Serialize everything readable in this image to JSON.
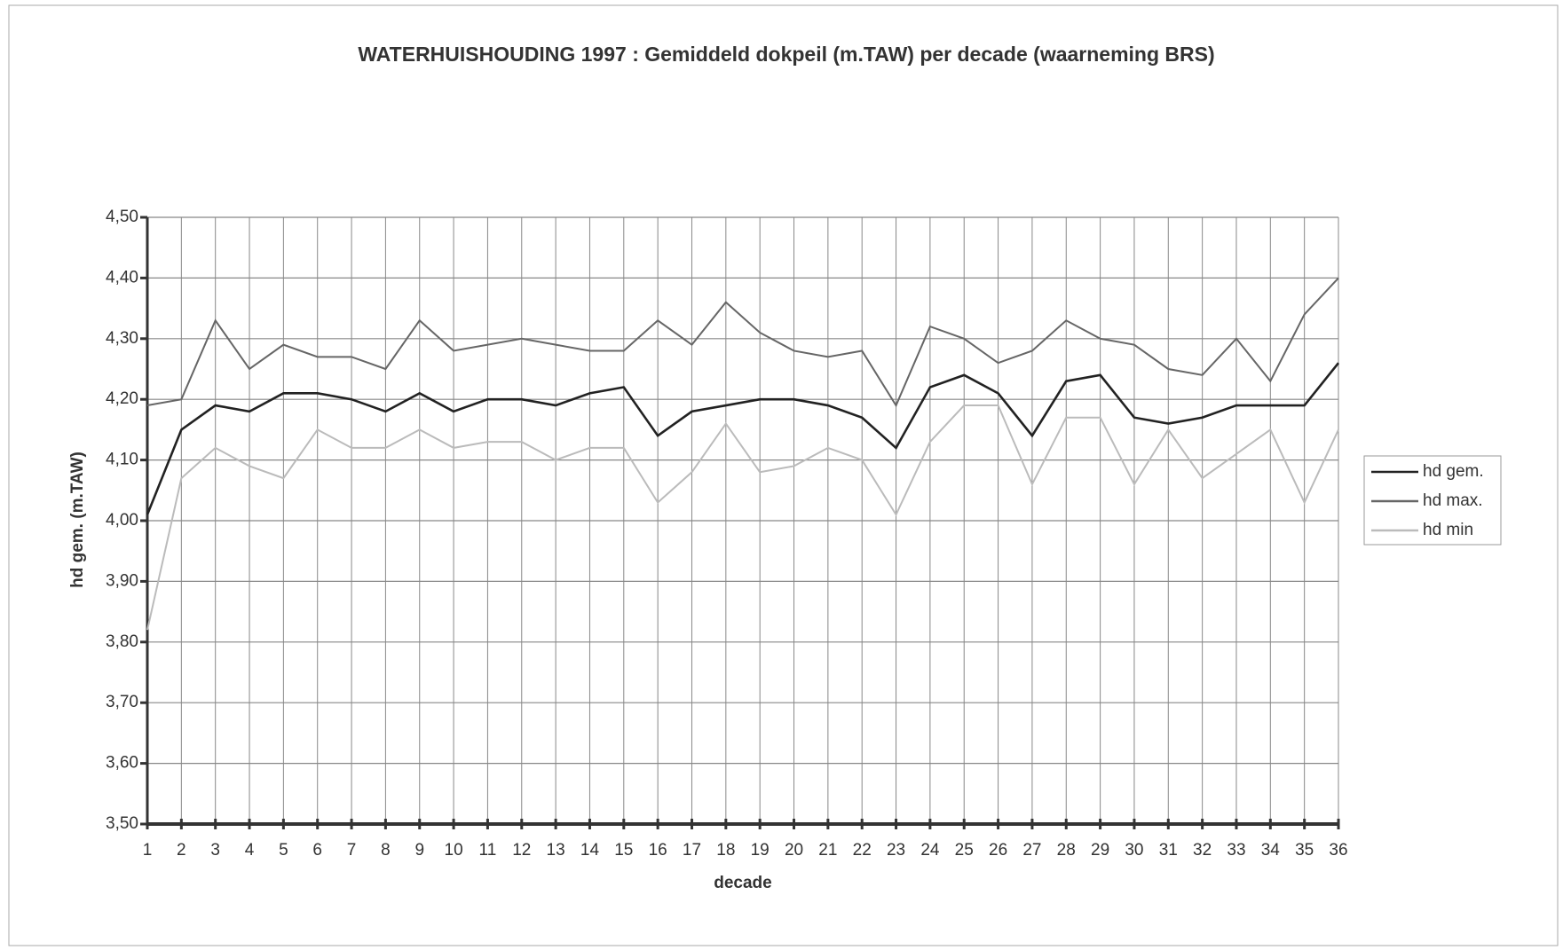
{
  "chart_data": {
    "type": "line",
    "title": "WATERHUISHOUDING 1997 : Gemiddeld dokpeil (m.TAW) per decade (waarneming BRS)",
    "x_label": "decade",
    "y_label": "hd gem. (m.TAW)",
    "x": [
      1,
      2,
      3,
      4,
      5,
      6,
      7,
      8,
      9,
      10,
      11,
      12,
      13,
      14,
      15,
      16,
      17,
      18,
      19,
      20,
      21,
      22,
      23,
      24,
      25,
      26,
      27,
      28,
      29,
      30,
      31,
      32,
      33,
      34,
      35,
      36
    ],
    "xlim": [
      1,
      36
    ],
    "xticks": [
      1,
      2,
      3,
      4,
      5,
      6,
      7,
      8,
      9,
      10,
      11,
      12,
      13,
      14,
      15,
      16,
      17,
      18,
      19,
      20,
      21,
      22,
      23,
      24,
      25,
      26,
      27,
      28,
      29,
      30,
      31,
      32,
      33,
      34,
      35,
      36
    ],
    "ylim": [
      3.5,
      4.5
    ],
    "yticks": [
      {
        "value": 3.5,
        "label": "3,50"
      },
      {
        "value": 3.6,
        "label": "3,60"
      },
      {
        "value": 3.7,
        "label": "3,70"
      },
      {
        "value": 3.8,
        "label": "3,80"
      },
      {
        "value": 3.9,
        "label": "3,90"
      },
      {
        "value": 4.0,
        "label": "4,00"
      },
      {
        "value": 4.1,
        "label": "4,10"
      },
      {
        "value": 4.2,
        "label": "4,20"
      },
      {
        "value": 4.3,
        "label": "4,30"
      },
      {
        "value": 4.4,
        "label": "4,40"
      },
      {
        "value": 4.5,
        "label": "4,50"
      }
    ],
    "grid": true,
    "legend": "right",
    "series": [
      {
        "name": "hd gem.",
        "color": "#222222",
        "values": [
          4.01,
          4.15,
          4.19,
          4.18,
          4.21,
          4.21,
          4.2,
          4.18,
          4.21,
          4.18,
          4.2,
          4.2,
          4.19,
          4.21,
          4.22,
          4.14,
          4.18,
          4.19,
          4.2,
          4.2,
          4.19,
          4.17,
          4.12,
          4.22,
          4.24,
          4.21,
          4.14,
          4.23,
          4.24,
          4.17,
          4.16,
          4.17,
          4.19,
          4.19,
          4.19,
          4.26
        ]
      },
      {
        "name": "hd max.",
        "color": "#666666",
        "values": [
          4.19,
          4.2,
          4.33,
          4.25,
          4.29,
          4.27,
          4.27,
          4.25,
          4.33,
          4.28,
          4.29,
          4.3,
          4.29,
          4.28,
          4.28,
          4.33,
          4.29,
          4.36,
          4.31,
          4.28,
          4.27,
          4.28,
          4.19,
          4.32,
          4.3,
          4.26,
          4.28,
          4.33,
          4.3,
          4.29,
          4.25,
          4.24,
          4.3,
          4.23,
          4.34,
          4.4
        ]
      },
      {
        "name": "hd min",
        "color": "#bbbbbb",
        "values": [
          3.82,
          4.07,
          4.12,
          4.09,
          4.07,
          4.15,
          4.12,
          4.12,
          4.15,
          4.12,
          4.13,
          4.13,
          4.1,
          4.12,
          4.12,
          4.03,
          4.08,
          4.16,
          4.08,
          4.09,
          4.12,
          4.1,
          4.01,
          4.13,
          4.19,
          4.19,
          4.06,
          4.17,
          4.17,
          4.06,
          4.15,
          4.07,
          4.11,
          4.15,
          4.03,
          4.15
        ]
      }
    ]
  }
}
